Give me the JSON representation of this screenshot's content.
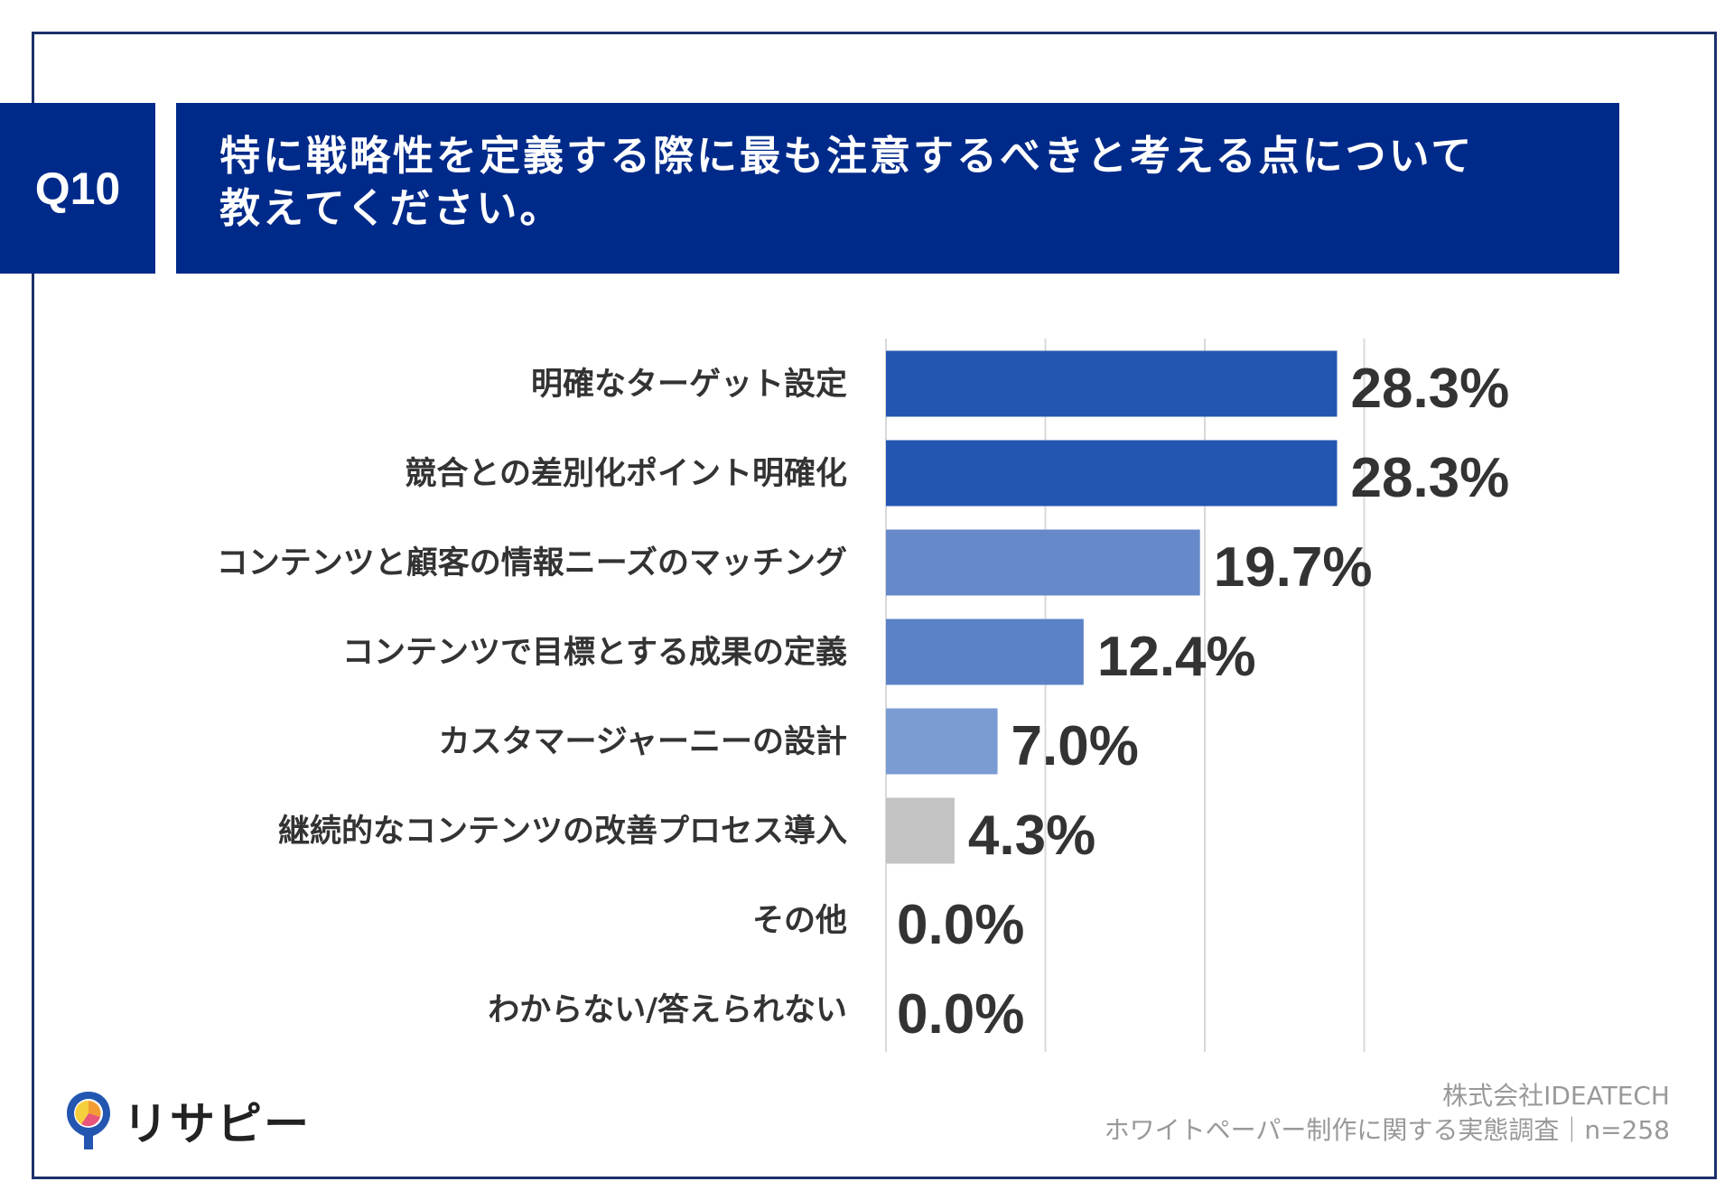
{
  "question": {
    "number": "Q10",
    "title_line1": "特に戦略性を定義する際に最も注意するべきと考える点について",
    "title_line2": "教えてください。"
  },
  "chart_data": {
    "type": "bar",
    "orientation": "horizontal",
    "categories": [
      "明確なターゲット設定",
      "競合との差別化ポイント明確化",
      "コンテンツと顧客の情報ニーズのマッチング",
      "コンテンツで目標とする成果の定義",
      "カスタマージャーニーの設計",
      "継続的なコンテンツの改善プロセス導入",
      "その他",
      "わからない/答えられない"
    ],
    "values": [
      28.3,
      28.3,
      19.7,
      12.4,
      7.0,
      4.3,
      0.0,
      0.0
    ],
    "value_labels": [
      "28.3%",
      "28.3%",
      "19.7%",
      "12.4%",
      "7.0%",
      "4.3%",
      "0.0%",
      "0.0%"
    ],
    "bar_colors": [
      "#2356b0",
      "#2356b0",
      "#6689c9",
      "#5b82c7",
      "#7b9bd3",
      "#c3c3c3",
      "#c3c3c3",
      "#c3c3c3"
    ],
    "xlim": [
      0,
      40
    ],
    "gridline_values": [
      0,
      10,
      20,
      30
    ],
    "grid": true,
    "legend": "none"
  },
  "logo": {
    "text": "リサピー"
  },
  "source": {
    "company": "株式会社IDEATECH",
    "survey": "ホワイトペーパー制作に関する実態調査｜n=258"
  }
}
